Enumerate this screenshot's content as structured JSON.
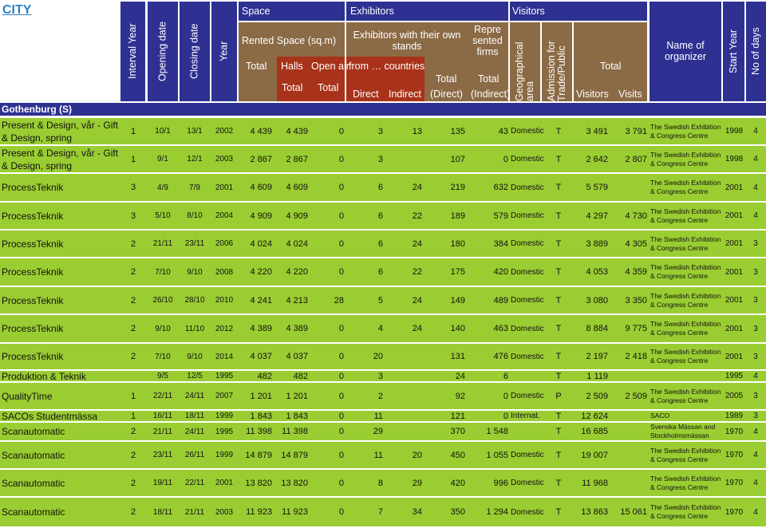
{
  "city_link": "CITY",
  "headers": {
    "interval_year": "Interval Year",
    "opening_date": "Opening date",
    "closing_date": "Closing date",
    "year": "Year",
    "space": "Space",
    "exhibitors": "Exhibitors",
    "visitors": "Visitors",
    "rented_space": "Rented Space (sq.m)",
    "space_total": "Total",
    "halls": "Halls",
    "open_air": "Open air",
    "halls_total": "Total",
    "open_air_total": "Total",
    "own_stands": "Exhibitors with their own stands",
    "from_countries": "from … countries",
    "direct": "Direct",
    "indirect": "Indirect",
    "exh_total": "Total",
    "exh_direct": "(Direct)",
    "represented_firms": "Repre sented firms",
    "rep_total": "Total",
    "rep_indirect": "(Indirect)",
    "geo_area": "Geographical area",
    "admission": "Admission for Trade/Public",
    "visitors_total": "Total",
    "visitors_col": "Visitors",
    "visits_col": "Visits",
    "organizer": "Name of organizer",
    "start_year": "Start Year",
    "no_of_days": "No of days"
  },
  "group": "Gothenburg (S)",
  "rows": [
    {
      "name": "Present & Design, vår - Gift & Design, spring",
      "interval": "1",
      "open": "10/1",
      "close": "13/1",
      "year": "2002",
      "space": "4 439",
      "halls": "4 439",
      "openair": "0",
      "direct": "3",
      "indirect": "13",
      "exh": "135",
      "rep": "43",
      "geo": "Domestic",
      "adm": "T",
      "visitors": "3 491",
      "visits": "3 791",
      "org": "The Swedish Exhibition & Congress Centre",
      "start": "1998",
      "days": "4"
    },
    {
      "name": "Present & Design, vår - Gift & Design, spring",
      "interval": "1",
      "open": "9/1",
      "close": "12/1",
      "year": "2003",
      "space": "2 867",
      "halls": "2 867",
      "openair": "0",
      "direct": "3",
      "indirect": "",
      "exh": "107",
      "rep": "0",
      "geo": "Domestic",
      "adm": "T",
      "visitors": "2 642",
      "visits": "2 807",
      "org": "The Swedish Exhibition & Congress Centre",
      "start": "1998",
      "days": "4"
    },
    {
      "name": "ProcessTeknik",
      "interval": "3",
      "open": "4/9",
      "close": "7/9",
      "year": "2001",
      "space": "4 609",
      "halls": "4 609",
      "openair": "0",
      "direct": "6",
      "indirect": "24",
      "exh": "219",
      "rep": "632",
      "geo": "Domestic",
      "adm": "T",
      "visitors": "5 579",
      "visits": "",
      "org": "The Swedish Exhibition & Congress Centre",
      "start": "2001",
      "days": "4"
    },
    {
      "name": "ProcessTeknik",
      "interval": "3",
      "open": "5/10",
      "close": "8/10",
      "year": "2004",
      "space": "4 909",
      "halls": "4 909",
      "openair": "0",
      "direct": "6",
      "indirect": "22",
      "exh": "189",
      "rep": "579",
      "geo": "Domestic",
      "adm": "T",
      "visitors": "4 297",
      "visits": "4 730",
      "org": "The Swedish Exhibition & Congress Centre",
      "start": "2001",
      "days": "4"
    },
    {
      "name": "ProcessTeknik",
      "interval": "2",
      "open": "21/11",
      "close": "23/11",
      "year": "2006",
      "space": "4 024",
      "halls": "4 024",
      "openair": "0",
      "direct": "6",
      "indirect": "24",
      "exh": "180",
      "rep": "384",
      "geo": "Domestic",
      "adm": "T",
      "visitors": "3 889",
      "visits": "4 305",
      "org": "The Swedish Exhibition & Congress Centre",
      "start": "2001",
      "days": "3"
    },
    {
      "name": "ProcessTeknik",
      "interval": "2",
      "open": "7/10",
      "close": "9/10",
      "year": "2008",
      "space": "4 220",
      "halls": "4 220",
      "openair": "0",
      "direct": "6",
      "indirect": "22",
      "exh": "175",
      "rep": "420",
      "geo": "Domestic",
      "adm": "T",
      "visitors": "4 053",
      "visits": "4 359",
      "org": "The Swedish Exhibition & Congress Centre",
      "start": "2001",
      "days": "3"
    },
    {
      "name": "ProcessTeknik",
      "interval": "2",
      "open": "26/10",
      "close": "28/10",
      "year": "2010",
      "space": "4 241",
      "halls": "4 213",
      "openair": "28",
      "direct": "5",
      "indirect": "24",
      "exh": "149",
      "rep": "489",
      "geo": "Domestic",
      "adm": "T",
      "visitors": "3 080",
      "visits": "3 350",
      "org": "The Swedish Exhibition & Congress Centre",
      "start": "2001",
      "days": "3"
    },
    {
      "name": "ProcessTeknik",
      "interval": "2",
      "open": "9/10",
      "close": "11/10",
      "year": "2012",
      "space": "4 389",
      "halls": "4 389",
      "openair": "0",
      "direct": "4",
      "indirect": "24",
      "exh": "140",
      "rep": "463",
      "geo": "Domestic",
      "adm": "T",
      "visitors": "8 884",
      "visits": "9 775",
      "org": "The Swedish Exhibition & Congress Centre",
      "start": "2001",
      "days": "3"
    },
    {
      "name": "ProcessTeknik",
      "interval": "2",
      "open": "7/10",
      "close": "9/10",
      "year": "2014",
      "space": "4 037",
      "halls": "4 037",
      "openair": "0",
      "direct": "20",
      "indirect": "",
      "exh": "131",
      "rep": "476",
      "geo": "Domestic",
      "adm": "T",
      "visitors": "2 197",
      "visits": "2 418",
      "org": "The Swedish Exhibition & Congress Centre",
      "start": "2001",
      "days": "3"
    },
    {
      "name": "Produktion & Teknik",
      "interval": "",
      "open": "9/5",
      "close": "12/5",
      "year": "1995",
      "space": "482",
      "halls": "482",
      "openair": "0",
      "direct": "3",
      "indirect": "",
      "exh": "24",
      "rep": "6",
      "geo": "",
      "adm": "T",
      "visitors": "1 119",
      "visits": "",
      "org": "",
      "start": "1995",
      "days": "4"
    },
    {
      "name": "QualityTime",
      "interval": "1",
      "open": "22/11",
      "close": "24/11",
      "year": "2007",
      "space": "1 201",
      "halls": "1 201",
      "openair": "0",
      "direct": "2",
      "indirect": "",
      "exh": "92",
      "rep": "0",
      "geo": "Domestic",
      "adm": "P",
      "visitors": "2 509",
      "visits": "2 509",
      "org": "The Swedish Exhibition & Congress Centre",
      "start": "2005",
      "days": "3"
    },
    {
      "name": "SACOs Studentmässa",
      "interval": "1",
      "open": "16/11",
      "close": "18/11",
      "year": "1999",
      "space": "1 843",
      "halls": "1 843",
      "openair": "0",
      "direct": "11",
      "indirect": "",
      "exh": "121",
      "rep": "0",
      "geo": "Internat.",
      "adm": "T",
      "visitors": "12 624",
      "visits": "",
      "org": "SACO",
      "start": "1989",
      "days": "3"
    },
    {
      "name": "Scanautomatic",
      "interval": "2",
      "open": "21/11",
      "close": "24/11",
      "year": "1995",
      "space": "11 398",
      "halls": "11 398",
      "openair": "0",
      "direct": "29",
      "indirect": "",
      "exh": "370",
      "rep": "1 548",
      "geo": "",
      "adm": "T",
      "visitors": "16 685",
      "visits": "",
      "org": "Svenska Mässan and Stockholmsmässan",
      "start": "1970",
      "days": "4"
    },
    {
      "name": "Scanautomatic",
      "interval": "2",
      "open": "23/11",
      "close": "26/11",
      "year": "1999",
      "space": "14 879",
      "halls": "14 879",
      "openair": "0",
      "direct": "11",
      "indirect": "20",
      "exh": "450",
      "rep": "1 055",
      "geo": "Domestic",
      "adm": "T",
      "visitors": "19 007",
      "visits": "",
      "org": "The Swedish Exhibition & Congress Centre",
      "start": "1970",
      "days": "4"
    },
    {
      "name": "Scanautomatic",
      "interval": "2",
      "open": "19/11",
      "close": "22/11",
      "year": "2001",
      "space": "13 820",
      "halls": "13 820",
      "openair": "0",
      "direct": "8",
      "indirect": "29",
      "exh": "420",
      "rep": "996",
      "geo": "Domestic",
      "adm": "T",
      "visitors": "11 968",
      "visits": "",
      "org": "The Swedish Exhibition & Congress Centre",
      "start": "1970",
      "days": "4"
    },
    {
      "name": "Scanautomatic",
      "interval": "2",
      "open": "18/11",
      "close": "21/11",
      "year": "2003",
      "space": "11 923",
      "halls": "11 923",
      "openair": "0",
      "direct": "7",
      "indirect": "34",
      "exh": "350",
      "rep": "1 294",
      "geo": "Domestic",
      "adm": "T",
      "visitors": "13 863",
      "visits": "15 061",
      "org": "The Swedish Exhibition & Congress Centre",
      "start": "1970",
      "days": "4"
    }
  ]
}
